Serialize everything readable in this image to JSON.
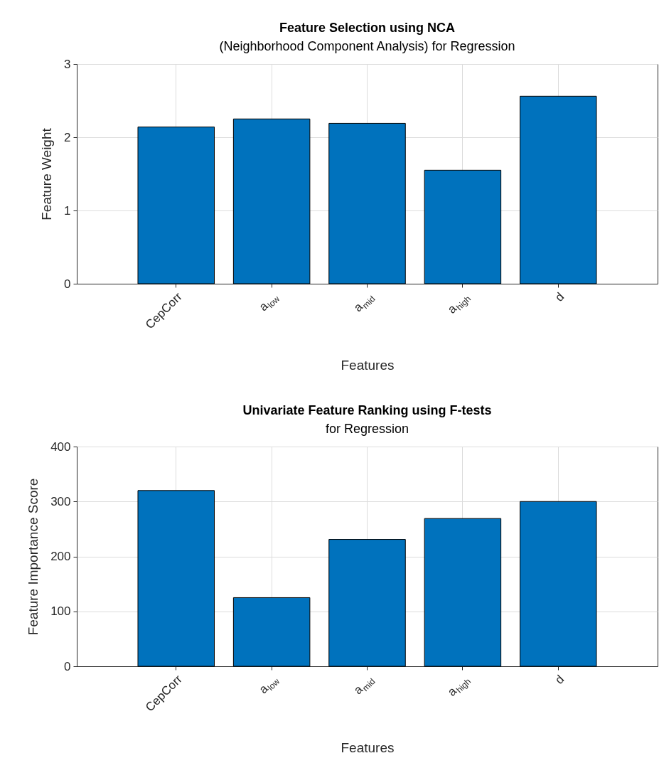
{
  "chart_data": [
    {
      "type": "bar",
      "title": "Feature Selection using NCA",
      "subtitle": "(Neighborhood Component Analysis) for Regression",
      "xlabel": "Features",
      "ylabel": "Feature Weight",
      "categories": [
        "CepCorr",
        "a$_{low}$",
        "a$_{mid}$",
        "a$_{high}$",
        "d"
      ],
      "values": [
        2.14,
        2.25,
        2.19,
        1.55,
        2.56
      ],
      "color": "#0072bd",
      "ylim": [
        0,
        3
      ],
      "yticks": [
        0,
        1,
        2,
        3
      ],
      "grid": true
    },
    {
      "type": "bar",
      "title": "Univariate Feature Ranking using F-tests",
      "subtitle": "for Regression",
      "xlabel": "Features",
      "ylabel": "Feature Importance Score",
      "categories": [
        "CepCorr",
        "a$_{low}$",
        "a$_{mid}$",
        "a$_{high}$",
        "d"
      ],
      "values": [
        320,
        125,
        231,
        269,
        300
      ],
      "color": "#0072bd",
      "ylim": [
        0,
        400
      ],
      "yticks": [
        0,
        100,
        200,
        300,
        400
      ],
      "grid": true
    }
  ]
}
